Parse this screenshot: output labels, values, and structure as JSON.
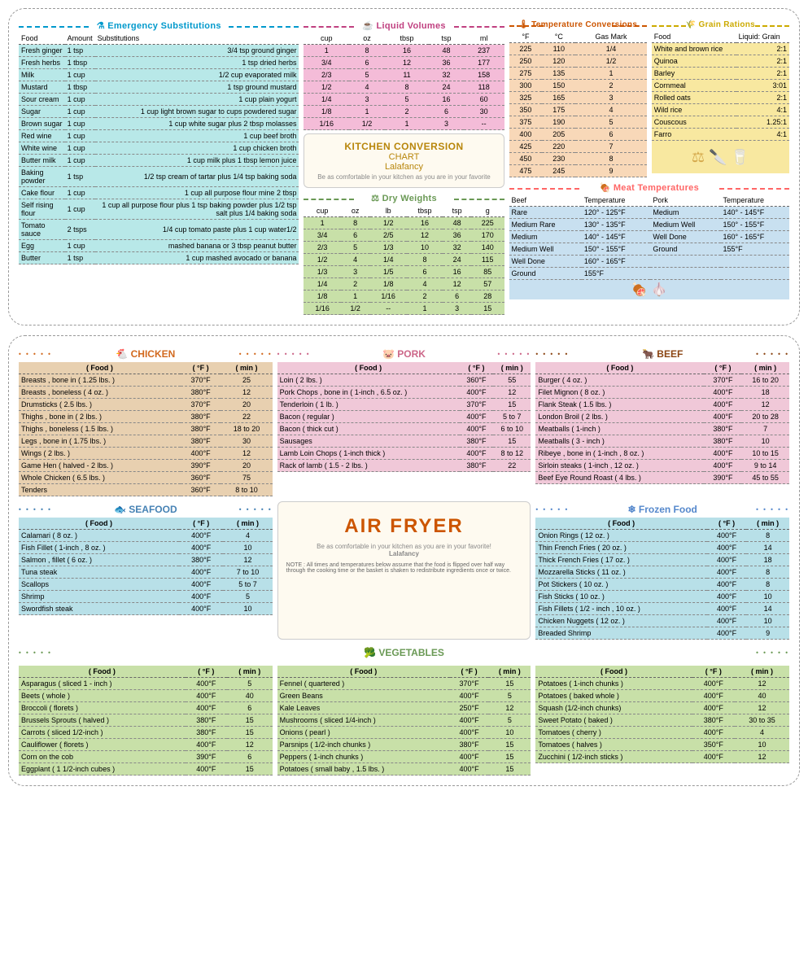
{
  "emergency": {
    "title": "⚗ Emergency Substitutions",
    "cols": [
      "Food",
      "Amount",
      "Substitutions"
    ],
    "rows": [
      [
        "Fresh ginger",
        "1 tsp",
        "3/4 tsp ground ginger"
      ],
      [
        "Fresh herbs",
        "1 tbsp",
        "1 tsp dried herbs"
      ],
      [
        "Milk",
        "1 cup",
        "1/2 cup evaporated milk"
      ],
      [
        "Mustard",
        "1 tbsp",
        "1 tsp ground mustard"
      ],
      [
        "Sour cream",
        "1 cup",
        "1 cup plain yogurt"
      ],
      [
        "Sugar",
        "1 cup",
        "1 cup light brown sugar to cups powdered sugar"
      ],
      [
        "Brown sugar",
        "1 cup",
        "1 cup white sugar plus 2 tbsp molasses"
      ],
      [
        "Red wine",
        "1 cup",
        "1 cup beef broth"
      ],
      [
        "White wine",
        "1 cup",
        "1 cup chicken broth"
      ],
      [
        "Butter milk",
        "1 cup",
        "1 cup milk plus 1 tbsp lemon juice"
      ],
      [
        "Baking powder",
        "1 tsp",
        "1/2 tsp cream of tartar plus 1/4 tsp baking soda"
      ],
      [
        "Cake flour",
        "1 cup",
        "1 cup all purpose flour mine 2 tbsp"
      ],
      [
        "Self rising flour",
        "1 cup",
        "1 cup all purpose flour plus 1 tsp baking powder plus 1/2 tsp salt plus 1/4 baking soda"
      ],
      [
        "Tomato sauce",
        "2 tsps",
        "1/4 cup tomato paste plus 1 cup water1/2"
      ],
      [
        "Egg",
        "1 cup",
        "mashed banana or 3 tbsp peanut butter"
      ],
      [
        "Butter",
        "1 tsp",
        "1 cup mashed avocado or banana"
      ]
    ]
  },
  "liquid": {
    "title": "☕ Liquid Volumes",
    "cols": [
      "cup",
      "oz",
      "tbsp",
      "tsp",
      "ml"
    ],
    "rows": [
      [
        "1",
        "8",
        "16",
        "48",
        "237"
      ],
      [
        "3/4",
        "6",
        "12",
        "36",
        "177"
      ],
      [
        "2/3",
        "5",
        "11",
        "32",
        "158"
      ],
      [
        "1/2",
        "4",
        "8",
        "24",
        "118"
      ],
      [
        "1/4",
        "3",
        "5",
        "16",
        "60"
      ],
      [
        "1/8",
        "1",
        "2",
        "6",
        "30"
      ],
      [
        "1/16",
        "1/2",
        "1",
        "3",
        "--"
      ]
    ]
  },
  "badge": {
    "t1": "KITCHEN CONVERSION",
    "t2": "CHART",
    "brand": "Lalafancy",
    "tag": "Be as comfortable in your kitchen as you are in your favorite"
  },
  "dry": {
    "title": "⚖ Dry Weights",
    "cols": [
      "cup",
      "oz",
      "lb",
      "tbsp",
      "tsp",
      "g"
    ],
    "rows": [
      [
        "1",
        "8",
        "1/2",
        "16",
        "48",
        "225"
      ],
      [
        "3/4",
        "6",
        "2/5",
        "12",
        "36",
        "170"
      ],
      [
        "2/3",
        "5",
        "1/3",
        "10",
        "32",
        "140"
      ],
      [
        "1/2",
        "4",
        "1/4",
        "8",
        "24",
        "115"
      ],
      [
        "1/3",
        "3",
        "1/5",
        "6",
        "16",
        "85"
      ],
      [
        "1/4",
        "2",
        "1/8",
        "4",
        "12",
        "57"
      ],
      [
        "1/8",
        "1",
        "1/16",
        "2",
        "6",
        "28"
      ],
      [
        "1/16",
        "1/2",
        "--",
        "1",
        "3",
        "15"
      ]
    ]
  },
  "temp": {
    "title": "🌡 Temperature Conversions",
    "cols": [
      "°F",
      "°C",
      "Gas Mark"
    ],
    "rows": [
      [
        "225",
        "110",
        "1/4"
      ],
      [
        "250",
        "120",
        "1/2"
      ],
      [
        "275",
        "135",
        "1"
      ],
      [
        "300",
        "150",
        "2"
      ],
      [
        "325",
        "165",
        "3"
      ],
      [
        "350",
        "175",
        "4"
      ],
      [
        "375",
        "190",
        "5"
      ],
      [
        "400",
        "205",
        "6"
      ],
      [
        "425",
        "220",
        "7"
      ],
      [
        "450",
        "230",
        "8"
      ],
      [
        "475",
        "245",
        "9"
      ]
    ]
  },
  "grain": {
    "title": "🌾 Grain Rations",
    "cols": [
      "Food",
      "Liquid: Grain"
    ],
    "rows": [
      [
        "White and brown rice",
        "2:1"
      ],
      [
        "Quinoa",
        "2:1"
      ],
      [
        "Barley",
        "2:1"
      ],
      [
        "Cornmeal",
        "3:01"
      ],
      [
        "Rolled oats",
        "2:1"
      ],
      [
        "Wild rice",
        "4:1"
      ],
      [
        "Couscous",
        "1.25:1"
      ],
      [
        "Farro",
        "4:1"
      ]
    ]
  },
  "meat": {
    "title": "🍖 Meat Temperatures",
    "cols": [
      "Beef",
      "Temperature",
      "Pork",
      "Temperature"
    ],
    "rows": [
      [
        "Rare",
        "120° - 125°F",
        "Medium",
        "140° - 145°F"
      ],
      [
        "Medium Rare",
        "130° - 135°F",
        "Medium Well",
        "150° - 155°F"
      ],
      [
        "Medium",
        "140° - 145°F",
        "Well Done",
        "160° - 165°F"
      ],
      [
        "Medium Well",
        "150° - 155°F",
        "Ground",
        "155°F"
      ],
      [
        "Well Done",
        "160° - 165°F",
        "",
        ""
      ],
      [
        "Ground",
        "155°F",
        "",
        ""
      ]
    ]
  },
  "af": {
    "cols": [
      "( Food )",
      "( °F )",
      "( min )"
    ],
    "chicken": {
      "t": "🐔 CHICKEN",
      "rows": [
        [
          "Breasts , bone in ( 1.25 lbs. )",
          "370°F",
          "25"
        ],
        [
          "Breasts , boneless ( 4 oz. )",
          "380°F",
          "12"
        ],
        [
          "Drumsticks ( 2.5 lbs. )",
          "370°F",
          "20"
        ],
        [
          "Thighs , bone in ( 2 lbs. )",
          "380°F",
          "22"
        ],
        [
          "Thighs , boneless ( 1.5 lbs. )",
          "380°F",
          "18 to 20"
        ],
        [
          "Legs , bone in ( 1.75 lbs. )",
          "380°F",
          "30"
        ],
        [
          "Wings ( 2 lbs. )",
          "400°F",
          "12"
        ],
        [
          "Game Hen ( halved - 2 lbs. )",
          "390°F",
          "20"
        ],
        [
          "Whole Chicken ( 6.5 lbs. )",
          "360°F",
          "75"
        ],
        [
          "Tenders",
          "360°F",
          "8 to 10"
        ]
      ]
    },
    "pork": {
      "t": "🐷 PORK",
      "rows": [
        [
          "Loin ( 2 lbs. )",
          "360°F",
          "55"
        ],
        [
          "Pork Chops , bone in ( 1-inch , 6.5 oz. )",
          "400°F",
          "12"
        ],
        [
          "Tenderloin ( 1 lb. )",
          "370°F",
          "15"
        ],
        [
          "Bacon ( regular )",
          "400°F",
          "5 to 7"
        ],
        [
          "Bacon ( thick cut )",
          "400°F",
          "6 to 10"
        ],
        [
          "Sausages",
          "380°F",
          "15"
        ],
        [
          "Lamb Loin Chops ( 1-inch thick )",
          "400°F",
          "8 to 12"
        ],
        [
          "Rack of lamb ( 1.5 - 2 lbs. )",
          "380°F",
          "22"
        ]
      ]
    },
    "beef": {
      "t": "🐂 BEEF",
      "rows": [
        [
          "Burger ( 4 oz. )",
          "370°F",
          "16 to 20"
        ],
        [
          "Filet Mignon ( 8 oz. )",
          "400°F",
          "18"
        ],
        [
          "Flank Steak ( 1.5 lbs. )",
          "400°F",
          "12"
        ],
        [
          "London Broil ( 2 lbs. )",
          "400°F",
          "20 to 28"
        ],
        [
          "Meatballs ( 1-inch )",
          "380°F",
          "7"
        ],
        [
          "Meatballs ( 3 - inch )",
          "380°F",
          "10"
        ],
        [
          "Ribeye , bone in ( 1-inch , 8 oz. )",
          "400°F",
          "10 to 15"
        ],
        [
          "Sirloin steaks ( 1-inch , 12 oz. )",
          "400°F",
          "9 to 14"
        ],
        [
          "Beef Eye Round Roast ( 4 lbs. )",
          "390°F",
          "45 to 55"
        ]
      ]
    },
    "seafood": {
      "t": "🐟 SEAFOOD",
      "rows": [
        [
          "Calamari ( 8 oz. )",
          "400°F",
          "4"
        ],
        [
          "Fish Fillet ( 1-inch , 8 oz. )",
          "400°F",
          "10"
        ],
        [
          "Salmon , fillet ( 6 oz. )",
          "380°F",
          "12"
        ],
        [
          "Tuna steak",
          "400°F",
          "7 to 10"
        ],
        [
          "Scallops",
          "400°F",
          "5 to 7"
        ],
        [
          "Shrimp",
          "400°F",
          "5"
        ],
        [
          "Swordfish steak",
          "400°F",
          "10"
        ]
      ]
    },
    "frozen": {
      "t": "❄ Frozen Food",
      "rows": [
        [
          "Onion Rings ( 12 oz. )",
          "400°F",
          "8"
        ],
        [
          "Thin French Fries ( 20 oz. )",
          "400°F",
          "14"
        ],
        [
          "Thick French Fries ( 17 oz. )",
          "400°F",
          "18"
        ],
        [
          "Mozzarella Sticks ( 11 oz. )",
          "400°F",
          "8"
        ],
        [
          "Pot Stickers ( 10 oz. )",
          "400°F",
          "8"
        ],
        [
          "Fish Sticks ( 10 oz. )",
          "400°F",
          "10"
        ],
        [
          "Fish Fillets ( 1/2 - inch , 10 oz. )",
          "400°F",
          "14"
        ],
        [
          "Chicken Nuggets ( 12 oz. )",
          "400°F",
          "10"
        ],
        [
          "Breaded Shrimp",
          "400°F",
          "9"
        ]
      ]
    },
    "veg": {
      "t": "🥦 VEGETABLES",
      "c1": [
        [
          "Asparagus ( sliced 1 - inch )",
          "400°F",
          "5"
        ],
        [
          "Beets ( whole )",
          "400°F",
          "40"
        ],
        [
          "Broccoli ( florets )",
          "400°F",
          "6"
        ],
        [
          "Brussels Sprouts ( halved )",
          "380°F",
          "15"
        ],
        [
          "Carrots ( sliced 1/2-inch )",
          "380°F",
          "15"
        ],
        [
          "Cauliflower ( florets )",
          "400°F",
          "12"
        ],
        [
          "Corn on the cob",
          "390°F",
          "6"
        ],
        [
          "Eggplant ( 1 1/2-inch cubes )",
          "400°F",
          "15"
        ]
      ],
      "c2": [
        [
          "Fennel ( quartered )",
          "370°F",
          "15"
        ],
        [
          "Green Beans",
          "400°F",
          "5"
        ],
        [
          "Kale Leaves",
          "250°F",
          "12"
        ],
        [
          "Mushrooms ( sliced 1/4-inch )",
          "400°F",
          "5"
        ],
        [
          "Onions ( pearl )",
          "400°F",
          "10"
        ],
        [
          "Parsnips ( 1/2-inch chunks )",
          "380°F",
          "15"
        ],
        [
          "Peppers ( 1-inch chunks )",
          "400°F",
          "15"
        ],
        [
          "Potatoes ( small baby , 1.5 lbs. )",
          "400°F",
          "15"
        ]
      ],
      "c3": [
        [
          "Potatoes ( 1-inch chunks )",
          "400°F",
          "12"
        ],
        [
          "Potatoes ( baked whole )",
          "400°F",
          "40"
        ],
        [
          "Squash (1/2-inch chunks)",
          "400°F",
          "12"
        ],
        [
          "Sweet Potato ( baked )",
          "380°F",
          "30 to 35"
        ],
        [
          "Tomatoes ( cherry )",
          "400°F",
          "4"
        ],
        [
          "Tomatoes ( halves )",
          "350°F",
          "10"
        ],
        [
          "Zucchini ( 1/2-inch sticks )",
          "400°F",
          "12"
        ]
      ]
    }
  },
  "afcenter": {
    "t": "AIR FRYER",
    "tag": "Be as comfortable in your kitchen as you are in your favorite!",
    "brand": "Lalafancy",
    "note": "NOTE : All times and temperatures below assume that the food is flipped over half way through the cooking time or the basket is shaken to redistribute ingredients once or twice."
  }
}
